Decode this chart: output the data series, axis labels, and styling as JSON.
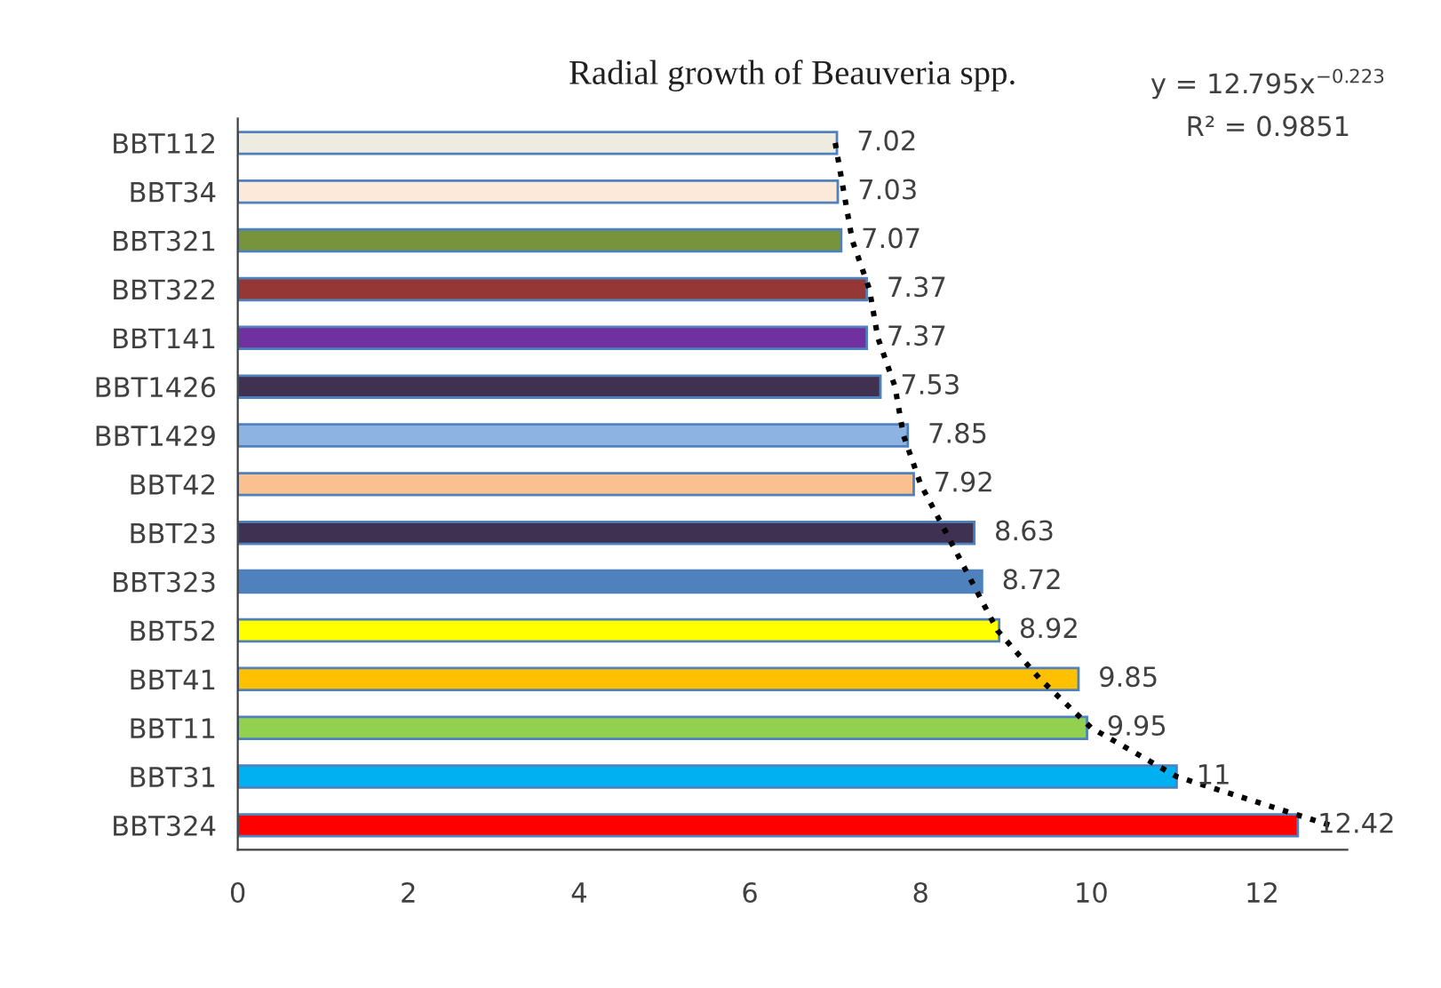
{
  "chart_data": {
    "type": "bar",
    "orientation": "horizontal",
    "title": "Radial growth of Beauveria spp.",
    "categories": [
      "BBT112",
      "BBT34",
      "BBT321",
      "BBT322",
      "BBT141",
      "BBT1426",
      "BBT1429",
      "BBT42",
      "BBT23",
      "BBT323",
      "BBT52",
      "BBT41",
      "BBT11",
      "BBT31",
      "BBT324"
    ],
    "series": [
      {
        "values": [
          7.02,
          7.03,
          7.07,
          7.37,
          7.37,
          7.53,
          7.85,
          7.92,
          8.63,
          8.72,
          8.92,
          9.85,
          9.95,
          11,
          12.42
        ],
        "value_labels": [
          "7.02",
          "7.03",
          "7.07",
          "7.37",
          "7.37",
          "7.53",
          "7.85",
          "7.92",
          "8.63",
          "8.72",
          "8.92",
          "9.85",
          "9.95",
          "11",
          "12.42"
        ],
        "colors": [
          "#eeece1",
          "#fde9d9",
          "#77933c",
          "#953735",
          "#7030a0",
          "#403151",
          "#8db3e2",
          "#fac090",
          "#3f3151",
          "#4f81bd",
          "#ffff00",
          "#ffc000",
          "#92d050",
          "#00b0f0",
          "#ff0000"
        ]
      },
      {
        "type": "line",
        "color": "#000000",
        "line_style": "dotted",
        "values": [
          7.0,
          7.1,
          7.2,
          7.4,
          7.5,
          7.7,
          7.8,
          8.0,
          8.3,
          8.6,
          8.9,
          9.4,
          10.0,
          11.0,
          12.8
        ]
      }
    ],
    "xlim": [
      0,
      13
    ],
    "xticks": [
      0,
      2,
      4,
      6,
      8,
      10,
      12
    ],
    "grid": false,
    "legend": false,
    "annotations": [
      "y = 12.795x$^{−0.223}$",
      "R² = 0.9851"
    ]
  }
}
